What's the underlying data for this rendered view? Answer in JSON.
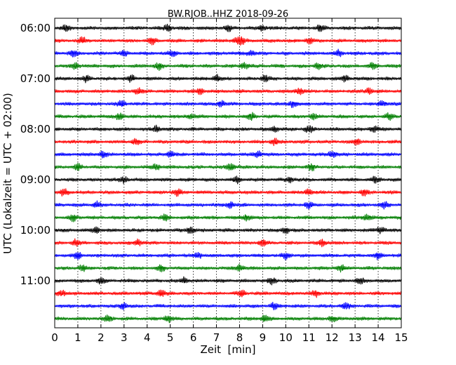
{
  "chart_data": {
    "type": "line",
    "subtype": "helicorder",
    "title": "BW.RJOB..HHZ 2018-09-26",
    "xlabel": "Zeit  [min]",
    "ylabel": "UTC (Lokalzeit = UTC + 02:00)",
    "xlim": [
      0,
      15
    ],
    "x_ticks": [
      "0",
      "1",
      "2",
      "3",
      "4",
      "5",
      "6",
      "7",
      "8",
      "9",
      "10",
      "11",
      "12",
      "13",
      "14",
      "15"
    ],
    "x_grid": "dotted vertical lines at each minute",
    "y_ticks": [
      "06:00",
      "07:00",
      "08:00",
      "09:00",
      "10:00",
      "11:00"
    ],
    "trace_interval_minutes": 15,
    "trace_count": 24,
    "trace_colors": [
      "#000000",
      "#ff0000",
      "#0000ff",
      "#007f00"
    ],
    "event_minutes": [
      [
        0.5,
        4.9,
        7.5,
        9.0,
        11.5
      ],
      [
        1.2,
        4.2,
        7.9,
        8.1,
        11.0
      ],
      [
        0.8,
        3.0,
        5.1,
        8.5,
        12.3
      ],
      [
        0.9,
        4.5,
        8.2,
        11.4,
        13.8
      ],
      [
        1.4,
        3.3,
        7.0,
        9.1,
        12.6
      ],
      [
        3.6,
        6.3,
        10.6,
        13.6
      ],
      [
        2.9,
        7.2,
        10.3,
        14.2
      ],
      [
        2.8,
        5.9,
        8.5,
        11.2,
        14.5
      ],
      [
        4.4,
        9.5,
        11.0,
        13.8
      ],
      [
        3.5,
        9.5,
        13.1
      ],
      [
        2.1,
        5.0,
        8.8,
        12.0
      ],
      [
        1.0,
        4.4,
        7.6,
        11.1
      ],
      [
        3.0,
        7.9,
        10.2,
        13.9
      ],
      [
        0.4,
        5.3,
        11.0,
        13.4
      ],
      [
        1.8,
        7.6,
        11.0,
        14.3
      ],
      [
        0.8,
        4.8,
        8.3,
        13.5
      ],
      [
        1.8,
        5.9,
        10.0,
        14.1
      ],
      [
        0.9,
        3.6,
        9.0,
        11.6
      ],
      [
        1.0,
        6.2,
        10.0,
        14.0
      ],
      [
        1.2,
        4.6,
        8.0,
        12.4
      ],
      [
        2.0,
        5.6,
        9.4,
        13.2
      ],
      [
        0.3,
        4.6,
        8.1,
        11.3
      ],
      [
        3.0,
        9.5,
        12.6
      ],
      [
        2.3,
        4.9,
        9.1,
        12.0
      ]
    ]
  }
}
